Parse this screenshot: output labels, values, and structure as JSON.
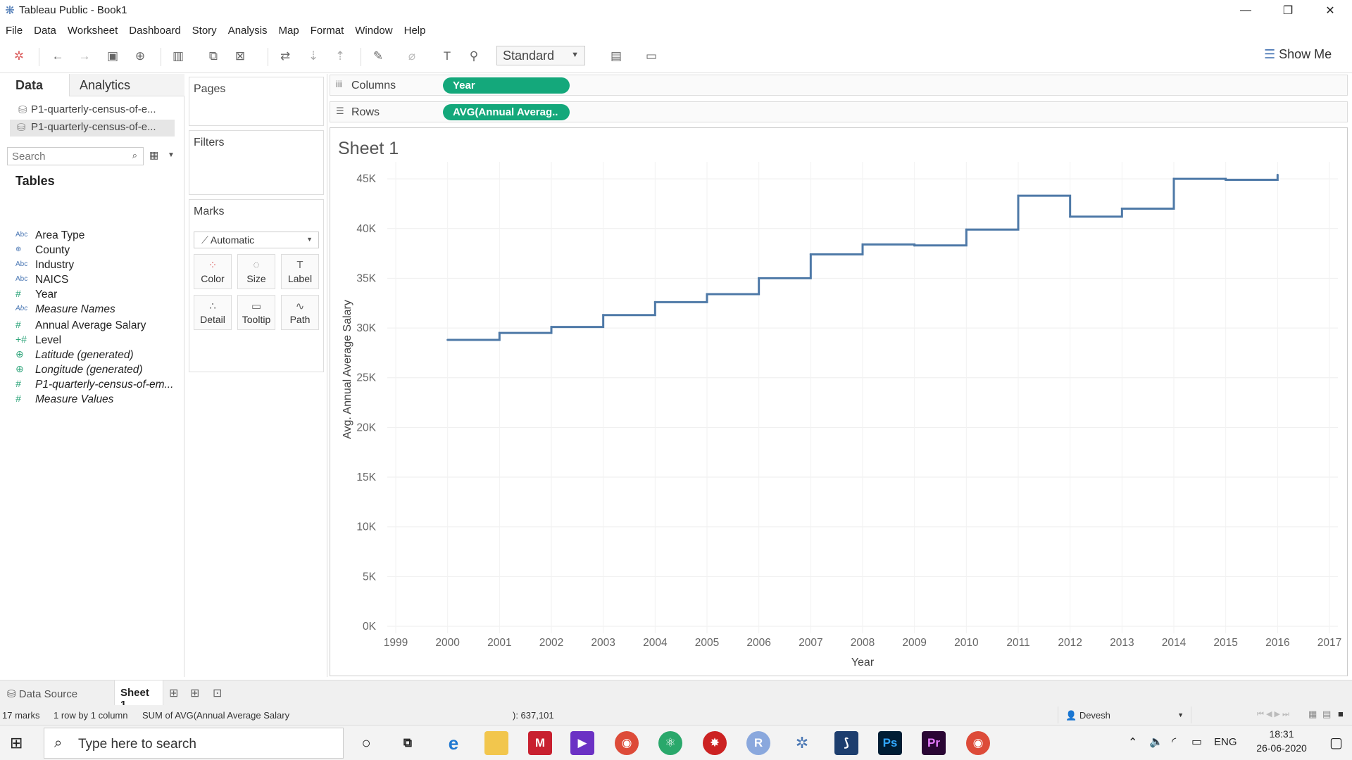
{
  "window": {
    "title": "Tableau Public - Book1",
    "minimize": "—",
    "maximize": "❐",
    "close": "✕"
  },
  "menu": [
    "File",
    "Data",
    "Worksheet",
    "Dashboard",
    "Story",
    "Analysis",
    "Map",
    "Format",
    "Window",
    "Help"
  ],
  "toolbar": {
    "fit": "Standard",
    "show_me": "Show Me"
  },
  "left_panel": {
    "tabs": {
      "data": "Data",
      "analytics": "Analytics"
    },
    "datasources": [
      "P1-quarterly-census-of-e...",
      "P1-quarterly-census-of-e..."
    ],
    "search_placeholder": "Search",
    "tables_header": "Tables",
    "fields": [
      {
        "icon": "Abc",
        "name": "Area Type",
        "kind": "dim",
        "italic": false
      },
      {
        "icon": "⊕",
        "name": "County",
        "kind": "dim",
        "italic": false
      },
      {
        "icon": "Abc",
        "name": "Industry",
        "kind": "dim",
        "italic": false
      },
      {
        "icon": "Abc",
        "name": "NAICS",
        "kind": "dim",
        "italic": false
      },
      {
        "icon": "#",
        "name": "Year",
        "kind": "measure",
        "italic": false
      },
      {
        "icon": "Abc",
        "name": "Measure Names",
        "kind": "dim",
        "italic": true
      },
      {
        "icon": "#",
        "name": "Annual Average Salary",
        "kind": "measure",
        "italic": false
      },
      {
        "icon": "+#",
        "name": "Level",
        "kind": "measure",
        "italic": false
      },
      {
        "icon": "⊕",
        "name": "Latitude (generated)",
        "kind": "measure",
        "italic": true
      },
      {
        "icon": "⊕",
        "name": "Longitude (generated)",
        "kind": "measure",
        "italic": true
      },
      {
        "icon": "#",
        "name": "P1-quarterly-census-of-em...",
        "kind": "measure",
        "italic": true
      },
      {
        "icon": "#",
        "name": "Measure Values",
        "kind": "measure",
        "italic": true
      }
    ]
  },
  "cards": {
    "pages": "Pages",
    "filters": "Filters",
    "marks": "Marks",
    "mark_type": "Automatic",
    "mark_buttons": [
      "Color",
      "Size",
      "Label",
      "Detail",
      "Tooltip",
      "Path"
    ]
  },
  "shelves": {
    "columns_label": "Columns",
    "columns_pill": "Year",
    "rows_label": "Rows",
    "rows_pill": "AVG(Annual Averag.."
  },
  "sheet": {
    "title": "Sheet 1"
  },
  "chart_data": {
    "type": "line",
    "line_style": "step",
    "title": "Sheet 1",
    "xlabel": "Year",
    "ylabel": "Avg. Annual Average Salary",
    "x_ticks": [
      "1999",
      "2000",
      "2001",
      "2002",
      "2003",
      "2004",
      "2005",
      "2006",
      "2007",
      "2008",
      "2009",
      "2010",
      "2011",
      "2012",
      "2013",
      "2014",
      "2015",
      "2016",
      "2017"
    ],
    "y_ticks": [
      "0K",
      "5K",
      "10K",
      "15K",
      "20K",
      "25K",
      "30K",
      "35K",
      "40K",
      "45K"
    ],
    "xlim": [
      1999,
      2017
    ],
    "ylim": [
      0,
      46000
    ],
    "grid": true,
    "color": "#4e79a7",
    "series": [
      {
        "x": [
          2000,
          2001,
          2002,
          2003,
          2004,
          2005,
          2006,
          2007,
          2008,
          2009,
          2010,
          2011,
          2012,
          2013,
          2014,
          2015,
          2016
        ],
        "values": [
          28800,
          29500,
          30100,
          31300,
          32600,
          33400,
          35000,
          37400,
          38400,
          38300,
          39900,
          43300,
          41200,
          42000,
          45000,
          44900,
          45400
        ]
      }
    ]
  },
  "bottom_tabs": {
    "data_source": "Data Source",
    "sheet1": "Sheet 1"
  },
  "status": {
    "marks": "17 marks",
    "rows_cols": "1 row by 1 column",
    "sum": "SUM of AVG(Annual Average Salary",
    "coords": "): 637,101",
    "user": "Devesh"
  },
  "taskbar": {
    "search_placeholder": "Type here to search",
    "lang": "ENG",
    "time": "18:31",
    "date": "26-06-2020"
  }
}
